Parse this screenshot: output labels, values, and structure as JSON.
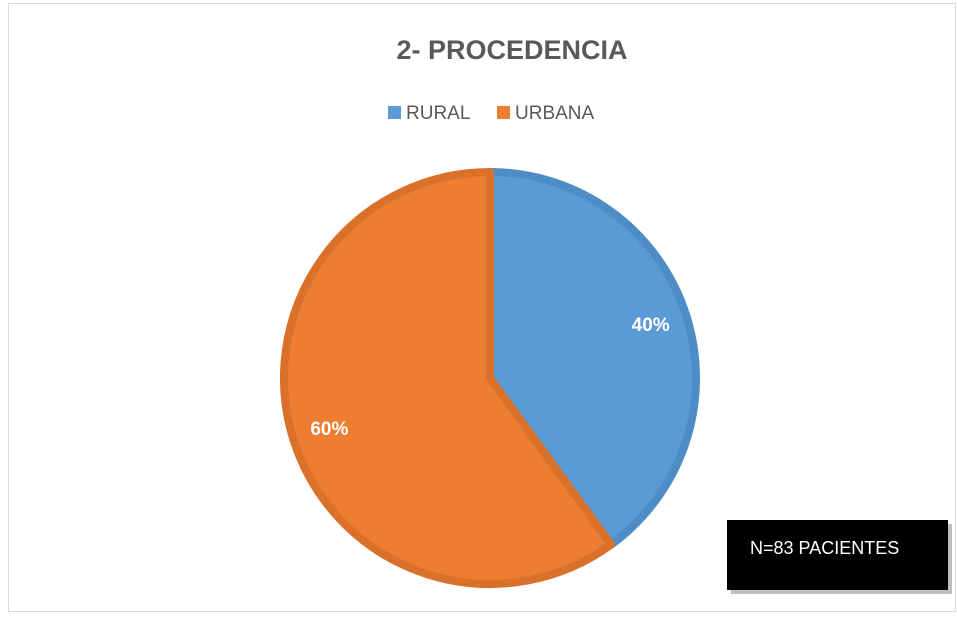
{
  "chart_data": {
    "type": "pie",
    "title": "2- PROCEDENCIA",
    "categories": [
      "RURAL",
      "URBANA"
    ],
    "values": [
      40,
      60
    ],
    "value_labels": [
      "40%",
      "60%"
    ],
    "colors": [
      "#5b9bd5",
      "#ed7d31"
    ],
    "edge_colors": [
      "#4e8cc6",
      "#d9712b"
    ],
    "legend": "top",
    "annotation": "N=83 PACIENTES"
  }
}
